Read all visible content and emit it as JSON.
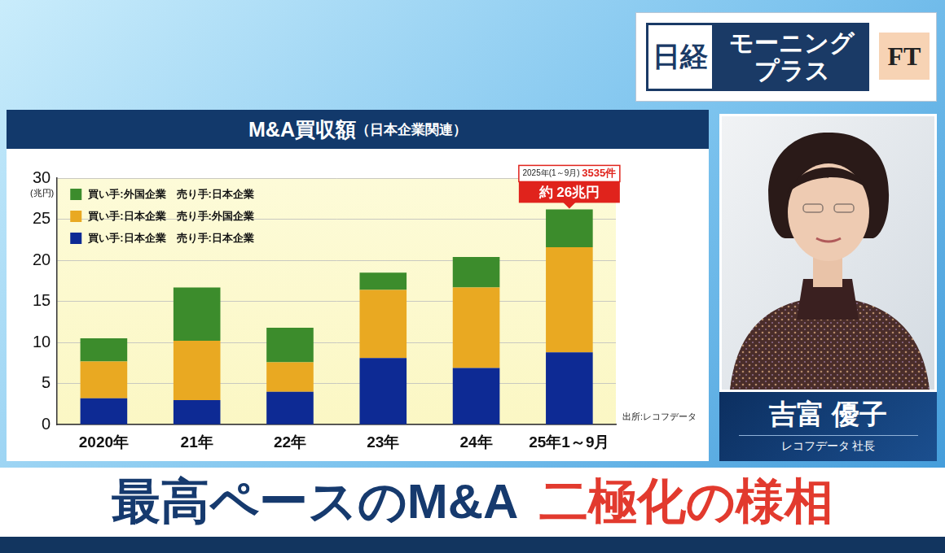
{
  "chart_data": {
    "type": "bar",
    "title": "M&A買収額",
    "subtitle": "（日本企業関連）",
    "y_label": "(兆円)",
    "source": "出所:レコフデータ",
    "categories": [
      "2020年",
      "21年",
      "22年",
      "23年",
      "24年",
      "25年1～9月"
    ],
    "series": [
      {
        "name": "買い手:日本企業　売り手:日本企業",
        "color": "#0d2a94",
        "values": [
          3.2,
          3.0,
          4.0,
          8.1,
          6.9,
          8.8
        ]
      },
      {
        "name": "買い手:日本企業　売り手:外国企業",
        "color": "#e9a922",
        "values": [
          4.5,
          7.2,
          3.6,
          8.3,
          9.8,
          12.8
        ]
      },
      {
        "name": "買い手:外国企業　売り手:日本企業",
        "color": "#3c8c2c",
        "values": [
          2.8,
          6.5,
          4.2,
          2.1,
          3.7,
          4.6
        ]
      }
    ],
    "stacked": true,
    "ylim": [
      0,
      30
    ],
    "yticks": [
      0,
      5,
      10,
      15,
      20,
      25,
      30
    ],
    "grid": true,
    "legend": "upper left",
    "annotation": {
      "category": "25年1～9月",
      "label": "2025年(1～9月)",
      "count": "3535件",
      "total": "約 26兆円"
    }
  },
  "overlay": {
    "logo": {
      "left": "日経",
      "middle": [
        "モーニング",
        "プラス"
      ],
      "right": "FT"
    },
    "speaker": {
      "name": "吉富 優子",
      "title": "レコフデータ 社長"
    },
    "headline": {
      "main": "最高ペースのM&A",
      "accent": "二極化の様相"
    }
  }
}
